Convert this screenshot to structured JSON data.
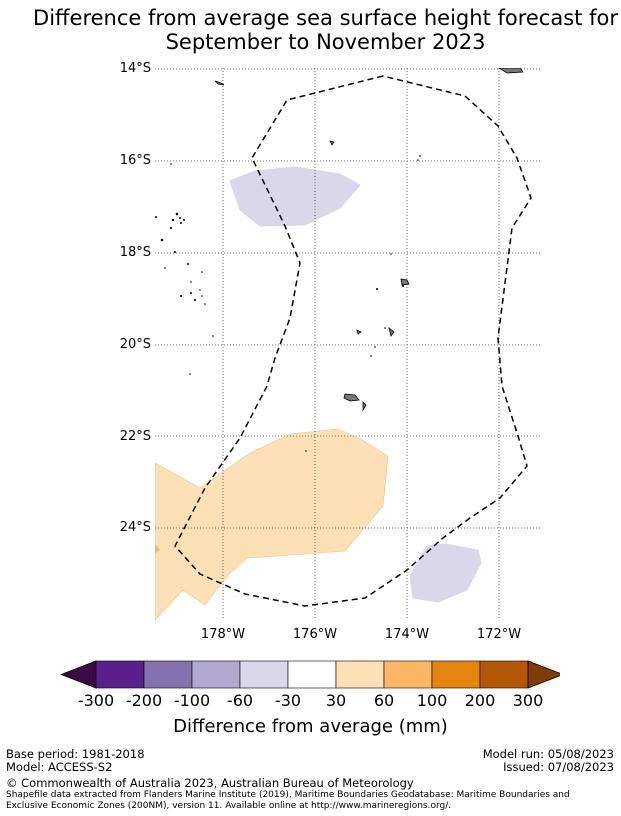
{
  "title_line1": "Difference from average sea surface height forecast for",
  "title_line2": "September to November 2023",
  "lat_labels": [
    "14°S",
    "16°S",
    "18°S",
    "20°S",
    "22°S",
    "24°S"
  ],
  "lon_labels": [
    "178°W",
    "176°W",
    "174°W",
    "172°W"
  ],
  "colorbar": {
    "ticks": [
      "-300",
      "-200",
      "-100",
      "-60",
      "-30",
      "30",
      "60",
      "100",
      "200",
      "300"
    ],
    "colors": [
      "#3b0a45",
      "#5a1f8a",
      "#8472af",
      "#b0a8d1",
      "#d8d8ea",
      "#ffffff",
      "#fde0b5",
      "#fbb764",
      "#e3850f",
      "#b35806",
      "#7f3b08"
    ],
    "label": "Difference from average (mm)"
  },
  "base_period": "Base period: 1981-2018",
  "model": "Model: ACCESS-S2",
  "model_run": "Model run: 05/08/2023",
  "issued": "Issued: 07/08/2023",
  "copyright": "© Commonwealth of Australia 2023, Australian Bureau of Meteorology",
  "shapefile_note": "Shapefile data extracted from Flanders Marine Institute (2019), Maritime Boundaries Geodatabase: Maritime Boundaries and Exclusive Economic Zones (200NM), version 11. Available online at http://www.marineregions.org/."
}
